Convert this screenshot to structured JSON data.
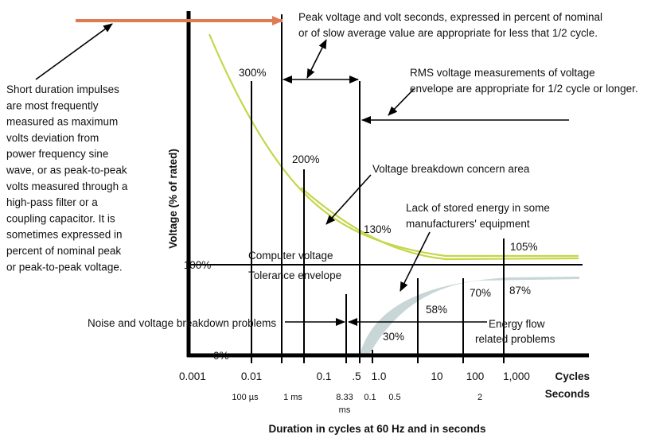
{
  "peak_note": [
    "Peak voltage and volt seconds, expressed in percent of nominal",
    "or of slow average value are appropriate for less that 1/2 cycle."
  ],
  "rms_note": [
    "RMS voltage measurements of voltage",
    "envelope are appropriate for 1/2 cycle or longer."
  ],
  "impulse_note": [
    "Short duration impulses",
    "are most frequently",
    "measured as maximum",
    "volts deviation from",
    "power frequency sine",
    "wave, or as peak-to-peak",
    "volts measured through a",
    "high-pass filter or a",
    "coupling capacitor. It is",
    "sometimes expressed in",
    "percent of nominal peak",
    "or peak-to-peak voltage."
  ],
  "levels": {
    "p300": "300%",
    "p200": "200%",
    "p130": "130%",
    "p105": "105%",
    "p100": "100%",
    "p0": "0%",
    "p70": "70%",
    "p87": "87%",
    "p58": "58%",
    "p30": "30%"
  },
  "breakdown_label": "Voltage breakdown concern area",
  "stored_energy_label": [
    "Lack of stored energy in some",
    "manufacturers' equipment"
  ],
  "envelope_label": [
    "Computer voltage",
    "Tolerance envelope"
  ],
  "noise_label": "Noise and voltage breakdown problems",
  "energy_label": [
    "Energy flow",
    "related problems"
  ],
  "y_axis_label": "Voltage (% of rated)",
  "cycles_axis": {
    "ticks": [
      "0.001",
      "0.01",
      "0.1",
      ".5",
      "1.0",
      "10",
      "100",
      "1,000"
    ],
    "label": "Cycles"
  },
  "seconds_axis": {
    "ticks": [
      "100 µs",
      "1 ms",
      "8.33",
      "ms",
      "0.1",
      "0.5",
      "2"
    ],
    "label": "Seconds"
  },
  "x_axis_title": "Duration in cycles at 60 Hz and in seconds"
}
